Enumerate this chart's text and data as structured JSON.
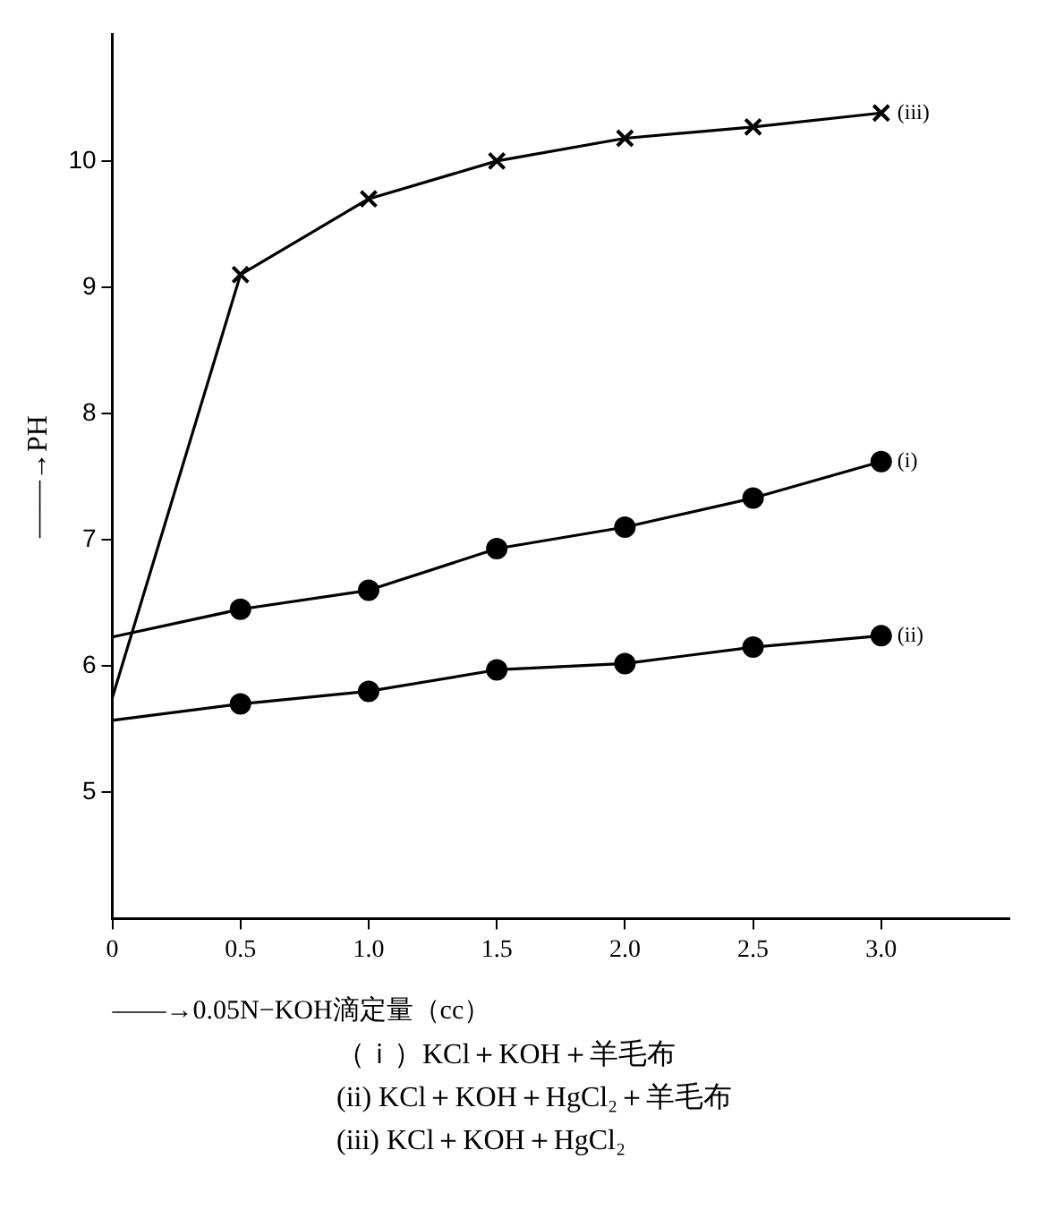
{
  "chart_data": {
    "type": "line",
    "xlabel": "——→0.05N−KOH滴定量（cc）",
    "ylabel": "——→PH",
    "x": [
      0,
      0.5,
      1.0,
      1.5,
      2.0,
      2.5,
      3.0
    ],
    "xlim": [
      0,
      3.5
    ],
    "xticks": [
      0,
      0.5,
      {
        "value": 1.0,
        "label": "1.0"
      },
      1.5,
      {
        "value": 2.0,
        "label": "2.0"
      },
      2.5,
      {
        "value": 3.0,
        "label": "3.0"
      }
    ],
    "ylim": [
      4,
      11
    ],
    "yticks": [
      5,
      6,
      7,
      8,
      9,
      10
    ],
    "grid": false,
    "legend": false,
    "line_style": "solid",
    "series": [
      {
        "name": "(i)",
        "color": "#000000",
        "marker": "circle",
        "values": [
          6.23,
          6.45,
          6.6,
          6.93,
          7.1,
          7.33,
          7.62
        ]
      },
      {
        "name": "(ii)",
        "color": "#000000",
        "marker": "circle",
        "values": [
          5.57,
          5.7,
          5.8,
          5.97,
          6.02,
          6.15,
          6.24
        ]
      },
      {
        "name": "(iii)",
        "color": "#000000",
        "marker": "cross",
        "values": [
          5.75,
          9.1,
          9.7,
          10.0,
          10.18,
          10.27,
          10.38
        ]
      }
    ],
    "annotations": [
      "（ｉ）KCl＋KOH＋羊毛布",
      "(ii) KCl＋KOH＋HgCl₂＋羊毛布",
      "(iii) KCl＋KOH＋HgCl₂"
    ]
  }
}
